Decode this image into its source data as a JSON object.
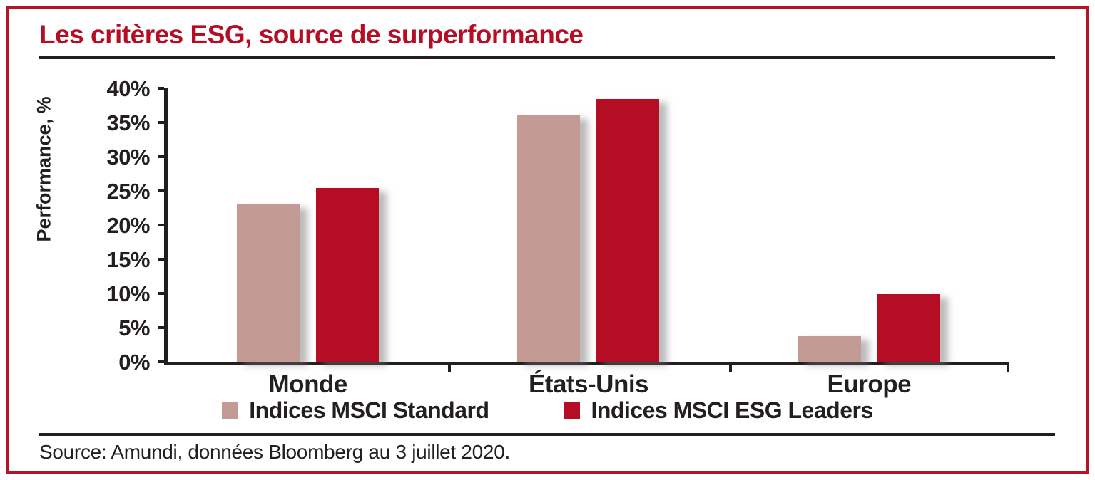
{
  "colors": {
    "accent_red": "#b50d23",
    "frame_red": "#b51428",
    "bar_tan": "#c49a95",
    "axis_dark": "#231f20"
  },
  "header": {
    "title": "Les critères ESG, source de surperformance"
  },
  "source": {
    "text": "Source: Amundi, données Bloomberg au 3 juillet 2020."
  },
  "chart_data": {
    "type": "bar",
    "title": "Les critères ESG, source de surperformance",
    "categories": [
      "Monde",
      "États-Unis",
      "Europe"
    ],
    "series": [
      {
        "name": "Indices MSCI Standard",
        "color": "#c49a95",
        "values": [
          23.0,
          36.0,
          3.8
        ]
      },
      {
        "name": "Indices MSCI ESG Leaders",
        "color": "#b50d23",
        "values": [
          25.4,
          38.4,
          9.9
        ]
      }
    ],
    "xlabel": "",
    "ylabel": "Performance, %",
    "ylim": [
      0,
      40
    ],
    "yticks": [
      {
        "value": 0,
        "label": "0%"
      },
      {
        "value": 5,
        "label": "5%"
      },
      {
        "value": 10,
        "label": "10%"
      },
      {
        "value": 15,
        "label": "15%"
      },
      {
        "value": 20,
        "label": "20%"
      },
      {
        "value": 25,
        "label": "25%"
      },
      {
        "value": 30,
        "label": "30%"
      },
      {
        "value": 35,
        "label": "35%"
      },
      {
        "value": 40,
        "label": "40%"
      }
    ],
    "grid": false,
    "legend_position": "bottom"
  }
}
